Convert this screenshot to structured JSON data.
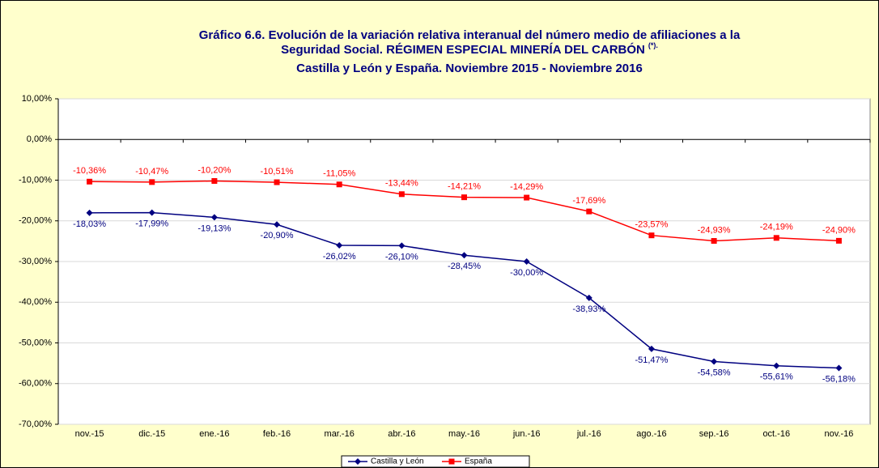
{
  "chart_data": {
    "type": "line",
    "title": [
      "Gráfico 6.6. Evolución de la variación relativa interanual del número medio de  afiliaciones a la",
      "Seguridad Social. RÉGIMEN ESPECIAL MINERÍA DEL CARBÓN",
      "Castilla y León y España. Noviembre 2015 - Noviembre 2016"
    ],
    "title_note": "(*).",
    "categories": [
      "nov.-15",
      "dic.-15",
      "ene.-16",
      "feb.-16",
      "mar.-16",
      "abr.-16",
      "may.-16",
      "jun.-16",
      "jul.-16",
      "ago.-16",
      "sep.-16",
      "oct.-16",
      "nov.-16"
    ],
    "series": [
      {
        "name": "Castilla y León",
        "color": "#000080",
        "marker": "diamond",
        "label_position": "below",
        "values": [
          -18.03,
          -17.99,
          -19.13,
          -20.9,
          -26.02,
          -26.1,
          -28.45,
          -30.0,
          -38.93,
          -51.47,
          -54.58,
          -55.61,
          -56.18
        ],
        "value_labels": [
          "-18,03%",
          "-17,99%",
          "-19,13%",
          "-20,90%",
          "-26,02%",
          "-26,10%",
          "-28,45%",
          "-30,00%",
          "-38,93%",
          "-51,47%",
          "-54,58%",
          "-55,61%",
          "-56,18%"
        ]
      },
      {
        "name": "España",
        "color": "#ff0000",
        "marker": "square",
        "label_position": "above",
        "values": [
          -10.36,
          -10.47,
          -10.2,
          -10.51,
          -11.05,
          -13.44,
          -14.21,
          -14.29,
          -17.69,
          -23.57,
          -24.93,
          -24.19,
          -24.9
        ],
        "value_labels": [
          "-10,36%",
          "-10,47%",
          "-10,20%",
          "-10,51%",
          "-11,05%",
          "-13,44%",
          "-14,21%",
          "-14,29%",
          "-17,69%",
          "-23,57%",
          "-24,93%",
          "-24,19%",
          "-24,90%"
        ]
      }
    ],
    "ylim": [
      -70,
      10
    ],
    "yticks": [
      {
        "value": -70,
        "label": "-70,00%"
      },
      {
        "value": -60,
        "label": "-60,00%"
      },
      {
        "value": -50,
        "label": "-50,00%"
      },
      {
        "value": -40,
        "label": "-40,00%"
      },
      {
        "value": -30,
        "label": "-30,00%"
      },
      {
        "value": -20,
        "label": "-20,00%"
      },
      {
        "value": -10,
        "label": "-10,00%"
      },
      {
        "value": 0,
        "label": "0,00%"
      },
      {
        "value": 10,
        "label": "10,00%"
      }
    ],
    "grid": true,
    "legend": "bottom"
  }
}
